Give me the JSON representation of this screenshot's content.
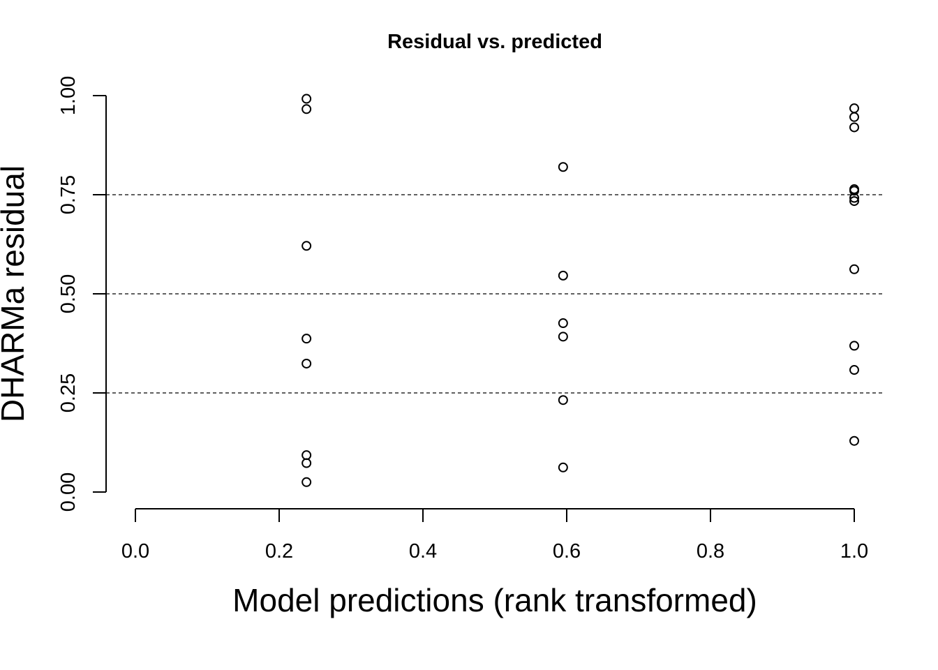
{
  "chart_data": {
    "type": "scatter",
    "title": "Residual vs. predicted",
    "xlabel": "Model predictions (rank transformed)",
    "ylabel": "DHARMa residual",
    "xlim": [
      0.0,
      1.0
    ],
    "ylim": [
      0.0,
      1.0
    ],
    "x_ticks": [
      0.0,
      0.2,
      0.4,
      0.6,
      0.8,
      1.0
    ],
    "x_tick_labels": [
      "0.0",
      "0.2",
      "0.4",
      "0.6",
      "0.8",
      "1.0"
    ],
    "y_ticks": [
      0.0,
      0.25,
      0.5,
      0.75,
      1.0
    ],
    "y_tick_labels": [
      "0.00",
      "0.25",
      "0.50",
      "0.75",
      "1.00"
    ],
    "reference_lines_y": [
      0.25,
      0.5,
      0.75
    ],
    "grid": false,
    "marker": "open-circle",
    "colors": {
      "points": "#000000",
      "axes": "#000000",
      "background": "#ffffff"
    },
    "points": [
      {
        "x": 0.238,
        "y": 0.992
      },
      {
        "x": 0.238,
        "y": 0.966
      },
      {
        "x": 0.238,
        "y": 0.621
      },
      {
        "x": 0.238,
        "y": 0.387
      },
      {
        "x": 0.238,
        "y": 0.324
      },
      {
        "x": 0.238,
        "y": 0.093
      },
      {
        "x": 0.238,
        "y": 0.073
      },
      {
        "x": 0.238,
        "y": 0.025
      },
      {
        "x": 0.595,
        "y": 0.82
      },
      {
        "x": 0.595,
        "y": 0.546
      },
      {
        "x": 0.595,
        "y": 0.426
      },
      {
        "x": 0.595,
        "y": 0.392
      },
      {
        "x": 0.595,
        "y": 0.232
      },
      {
        "x": 0.595,
        "y": 0.062
      },
      {
        "x": 1.0,
        "y": 0.968
      },
      {
        "x": 1.0,
        "y": 0.946
      },
      {
        "x": 1.0,
        "y": 0.92
      },
      {
        "x": 1.0,
        "y": 0.764
      },
      {
        "x": 1.0,
        "y": 0.76
      },
      {
        "x": 1.0,
        "y": 0.742
      },
      {
        "x": 1.0,
        "y": 0.734
      },
      {
        "x": 1.0,
        "y": 0.562
      },
      {
        "x": 1.0,
        "y": 0.369
      },
      {
        "x": 1.0,
        "y": 0.308
      },
      {
        "x": 1.0,
        "y": 0.129
      }
    ]
  }
}
